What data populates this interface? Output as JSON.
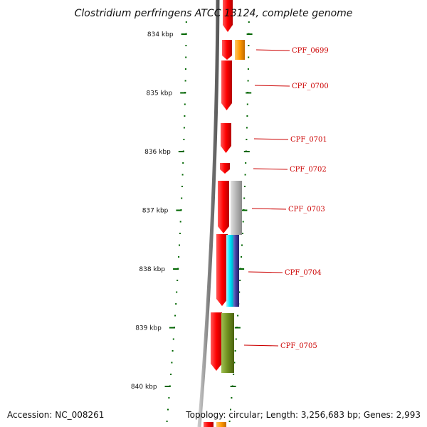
{
  "title": "Clostridium perfringens ATCC 13124, complete genome",
  "footer": {
    "accession": "Accession: NC_008261",
    "summary": "Topology: circular; Length: 3,256,683 bp; Genes: 2,993"
  },
  "scale": {
    "unit": "kbp",
    "ticks": [
      "834 kbp",
      "835 kbp",
      "836 kbp",
      "837 kbp",
      "838 kbp",
      "839 kbp",
      "840 kbp"
    ]
  },
  "genes": [
    {
      "label": "CPF_0699"
    },
    {
      "label": "CPF_0700"
    },
    {
      "label": "CPF_0701"
    },
    {
      "label": "CPF_0702"
    },
    {
      "label": "CPF_0703"
    },
    {
      "label": "CPF_0704"
    },
    {
      "label": "CPF_0705"
    }
  ],
  "colors": {
    "cds": "#ff0000",
    "cog_orange": "#ff9900",
    "cog_gray": "#b4b4b4",
    "cog_cyan": "#00e5ff",
    "cog_navy": "#3a3a9a",
    "cog_olive": "#6e8f1e",
    "backbone": "#808080",
    "tick": "#006600",
    "label": "#cc0000"
  }
}
